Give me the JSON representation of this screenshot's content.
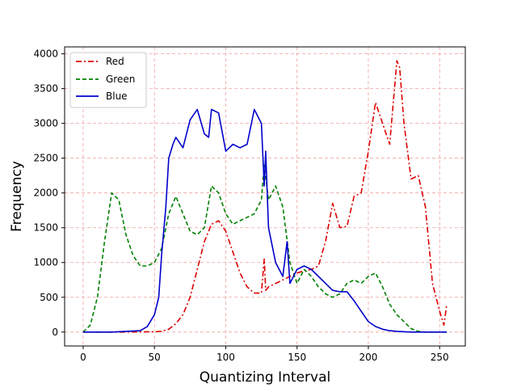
{
  "chart_data": {
    "type": "line",
    "title": "",
    "xlabel": "Quantizing Interval",
    "ylabel": "Frequency",
    "xlim": [
      -13,
      268
    ],
    "ylim": [
      -200,
      4100
    ],
    "xticks": [
      0,
      50,
      100,
      150,
      200,
      250
    ],
    "yticks": [
      0,
      500,
      1000,
      1500,
      2000,
      2500,
      3000,
      3500,
      4000
    ],
    "grid": true,
    "grid_color": "#f0a0a0",
    "legend_position": "top-left",
    "series": [
      {
        "name": "Red",
        "color": "#dd0000",
        "style": "dashdot",
        "x": [
          0,
          30,
          50,
          55,
          60,
          65,
          70,
          75,
          80,
          85,
          90,
          95,
          100,
          105,
          110,
          115,
          120,
          125,
          127,
          128,
          130,
          135,
          140,
          145,
          150,
          155,
          160,
          165,
          170,
          175,
          180,
          185,
          190,
          195,
          200,
          205,
          210,
          215,
          220,
          222,
          225,
          230,
          235,
          240,
          245,
          250,
          253,
          255
        ],
        "values": [
          0,
          0,
          5,
          10,
          40,
          120,
          250,
          500,
          900,
          1300,
          1550,
          1600,
          1450,
          1150,
          850,
          650,
          560,
          560,
          1050,
          600,
          650,
          700,
          750,
          800,
          850,
          880,
          900,
          950,
          1300,
          1850,
          1500,
          1520,
          1950,
          2000,
          2600,
          3300,
          3000,
          2700,
          3900,
          3800,
          3000,
          2200,
          2250,
          1800,
          700,
          300,
          100,
          400
        ]
      },
      {
        "name": "Green",
        "color": "#008000",
        "style": "dashed",
        "x": [
          0,
          5,
          10,
          15,
          20,
          25,
          30,
          35,
          40,
          45,
          50,
          55,
          60,
          65,
          70,
          75,
          80,
          85,
          90,
          95,
          100,
          105,
          110,
          115,
          120,
          125,
          127,
          130,
          135,
          140,
          145,
          150,
          155,
          160,
          165,
          170,
          175,
          180,
          185,
          190,
          195,
          200,
          205,
          210,
          215,
          220,
          225,
          230,
          235,
          240,
          250,
          255
        ],
        "values": [
          0,
          100,
          500,
          1300,
          2000,
          1900,
          1400,
          1100,
          950,
          950,
          1000,
          1200,
          1700,
          1950,
          1700,
          1450,
          1400,
          1500,
          2100,
          2000,
          1700,
          1550,
          1600,
          1650,
          1700,
          1900,
          2400,
          1900,
          2100,
          1800,
          1000,
          700,
          900,
          800,
          650,
          550,
          500,
          550,
          700,
          750,
          700,
          800,
          850,
          650,
          400,
          250,
          150,
          50,
          10,
          0,
          0,
          0
        ]
      },
      {
        "name": "Blue",
        "color": "#0000cc",
        "style": "solid",
        "x": [
          0,
          20,
          40,
          45,
          50,
          53,
          55,
          58,
          60,
          63,
          65,
          70,
          75,
          80,
          85,
          88,
          90,
          95,
          100,
          105,
          110,
          115,
          120,
          125,
          127,
          128,
          130,
          135,
          140,
          143,
          145,
          150,
          155,
          160,
          165,
          170,
          175,
          180,
          185,
          190,
          195,
          200,
          205,
          210,
          215,
          220,
          230,
          240,
          250,
          255
        ],
        "values": [
          0,
          0,
          20,
          80,
          250,
          500,
          1100,
          1800,
          2500,
          2700,
          2800,
          2650,
          3050,
          3200,
          2850,
          2800,
          3200,
          3150,
          2600,
          2700,
          2650,
          2700,
          3200,
          3000,
          2100,
          2600,
          1500,
          1000,
          800,
          1300,
          700,
          900,
          950,
          900,
          800,
          700,
          600,
          580,
          580,
          450,
          300,
          150,
          80,
          40,
          20,
          10,
          0,
          0,
          0,
          0
        ]
      }
    ]
  }
}
